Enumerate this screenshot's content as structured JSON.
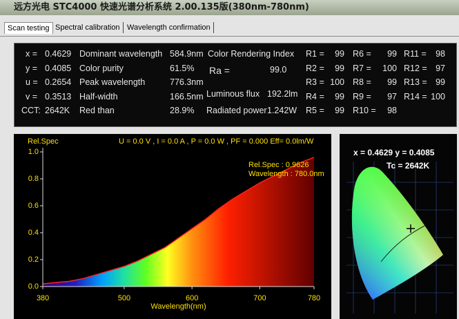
{
  "window": {
    "title": "远方光电 STC4000 快速光谱分析系统 2.00.135版(380nm-780nm)"
  },
  "tabs": [
    "Scan testing",
    "Spectral calibration",
    "Wavelength confirmation"
  ],
  "results": {
    "coords": [
      {
        "label": "x =",
        "value": "0.4629"
      },
      {
        "label": "y =",
        "value": "0.4085"
      },
      {
        "label": "u =",
        "value": "0.2654"
      },
      {
        "label": "v =",
        "value": "0.3513"
      },
      {
        "label": "CCT:",
        "value": "2642K"
      }
    ],
    "params": [
      {
        "label": "Dominant wavelength",
        "value": "584.9nm"
      },
      {
        "label": "Color purity",
        "value": "61.5%"
      },
      {
        "label": "Peak wavelength",
        "value": "776.3nm"
      },
      {
        "label": "Half-width",
        "value": "166.5nm"
      },
      {
        "label": "Red than",
        "value": "28.9%"
      }
    ],
    "cri_title": "Color Rendering Index",
    "ra": {
      "label": "Ra =",
      "value": "99.0"
    },
    "flux": {
      "label": "Luminous flux",
      "value": "192.2lm"
    },
    "power": {
      "label": "Radiated power",
      "value": "1.242W"
    },
    "cri": [
      {
        "label": "R1 =",
        "value": "99"
      },
      {
        "label": "R2 =",
        "value": "99"
      },
      {
        "label": "R3 =",
        "value": "100"
      },
      {
        "label": "R4 =",
        "value": "99"
      },
      {
        "label": "R5 =",
        "value": "99"
      },
      {
        "label": "R6 =",
        "value": "99"
      },
      {
        "label": "R7 =",
        "value": "100"
      },
      {
        "label": "R8 =",
        "value": "99"
      },
      {
        "label": "R9 =",
        "value": "97"
      },
      {
        "label": "R10 =",
        "value": "98"
      },
      {
        "label": "R11 =",
        "value": "98"
      },
      {
        "label": "R12 =",
        "value": "97"
      },
      {
        "label": "R13 =",
        "value": "99"
      },
      {
        "label": "R14 =",
        "value": "100"
      }
    ]
  },
  "chart_data": {
    "type": "area",
    "y_label": "Rel.Spec",
    "x_label": "Wavelength(nm)",
    "header": "U = 0.0 V , I = 0.0 A , P = 0.0 W , PF = 0.000 Eff= 0.0lm/W",
    "annotations": [
      "Rel.Spec : 0.9626",
      "Wavelength : 780.0nm"
    ],
    "x": [
      380,
      400,
      420,
      440,
      460,
      480,
      500,
      520,
      540,
      560,
      580,
      600,
      620,
      640,
      660,
      680,
      700,
      720,
      740,
      760,
      780
    ],
    "values": [
      0.02,
      0.03,
      0.04,
      0.06,
      0.09,
      0.12,
      0.15,
      0.19,
      0.24,
      0.29,
      0.36,
      0.43,
      0.5,
      0.58,
      0.65,
      0.71,
      0.77,
      0.82,
      0.87,
      0.92,
      0.96
    ],
    "color": "#ff2020",
    "xlim": [
      380,
      780
    ],
    "xticks": [
      380,
      500,
      600,
      700,
      780
    ],
    "ylim": [
      0,
      1
    ],
    "yticks": [
      {
        "value": 0,
        "label": "0.0"
      },
      {
        "value": 0.2,
        "label": "0.2"
      },
      {
        "value": 0.4,
        "label": "0.4"
      },
      {
        "value": 0.6,
        "label": "0.6"
      },
      {
        "value": 0.8,
        "label": "0.8"
      },
      {
        "value": 1,
        "label": "1.0"
      }
    ]
  },
  "cie": {
    "xy": "x = 0.4629 y = 0.4085",
    "tc": "Tc = 2642K"
  }
}
